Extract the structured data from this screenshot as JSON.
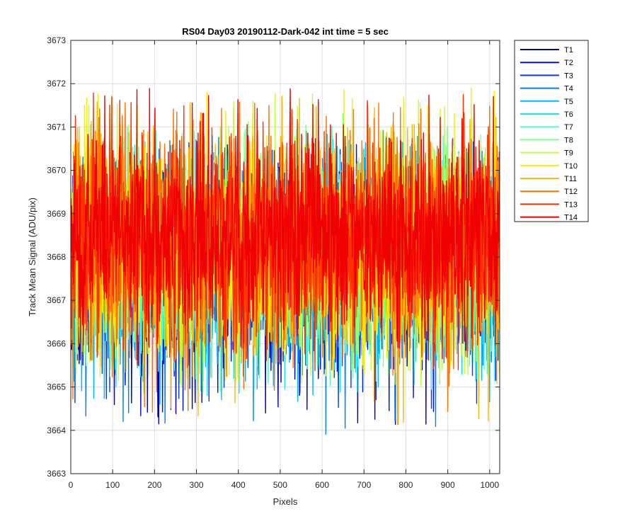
{
  "chart_data": {
    "type": "line",
    "title": "RS04 Day03 20190112-Dark-042 int time = 5 sec",
    "xlabel": "Pixels",
    "ylabel": "Track Mean Signal (ADU/pix)",
    "xlim": [
      0,
      1024
    ],
    "ylim": [
      3663,
      3673
    ],
    "xticks": [
      "0",
      "100",
      "200",
      "300",
      "400",
      "500",
      "600",
      "700",
      "800",
      "900",
      "1000"
    ],
    "yticks": [
      "3663",
      "3664",
      "3665",
      "3666",
      "3667",
      "3668",
      "3669",
      "3670",
      "3671",
      "3672",
      "3673"
    ],
    "grid": true,
    "legend_position": "outside-top-right",
    "n_points_per_series": 1024,
    "series": [
      {
        "name": "T1",
        "color": "#0000b8",
        "mean": 3667.7,
        "min": 3664.1,
        "max": 3670.5
      },
      {
        "name": "T2",
        "color": "#0010dc",
        "mean": 3667.8,
        "min": 3664.3,
        "max": 3670.6
      },
      {
        "name": "T3",
        "color": "#0040f0",
        "mean": 3667.8,
        "min": 3664.5,
        "max": 3670.7
      },
      {
        "name": "T4",
        "color": "#0080ff",
        "mean": 3667.9,
        "min": 3663.9,
        "max": 3670.8
      },
      {
        "name": "T5",
        "color": "#00b8ff",
        "mean": 3667.9,
        "min": 3664.6,
        "max": 3670.9
      },
      {
        "name": "T6",
        "color": "#10e8f0",
        "mean": 3668.0,
        "min": 3664.8,
        "max": 3671.0
      },
      {
        "name": "T7",
        "color": "#50ffc8",
        "mean": 3668.0,
        "min": 3664.9,
        "max": 3671.1
      },
      {
        "name": "T8",
        "color": "#80ff80",
        "mean": 3668.1,
        "min": 3664.8,
        "max": 3671.3
      },
      {
        "name": "T9",
        "color": "#c0ff40",
        "mean": 3668.2,
        "min": 3665.0,
        "max": 3672.0
      },
      {
        "name": "T10",
        "color": "#f0f000",
        "mean": 3668.2,
        "min": 3665.1,
        "max": 3671.9
      },
      {
        "name": "T11",
        "color": "#ffb800",
        "mean": 3668.3,
        "min": 3664.1,
        "max": 3671.7
      },
      {
        "name": "T12",
        "color": "#ff7000",
        "mean": 3668.3,
        "min": 3664.4,
        "max": 3671.6
      },
      {
        "name": "T13",
        "color": "#ff3000",
        "mean": 3668.4,
        "min": 3665.3,
        "max": 3671.8
      },
      {
        "name": "T14",
        "color": "#f00000",
        "mean": 3668.5,
        "min": 3665.5,
        "max": 3671.9
      }
    ]
  }
}
